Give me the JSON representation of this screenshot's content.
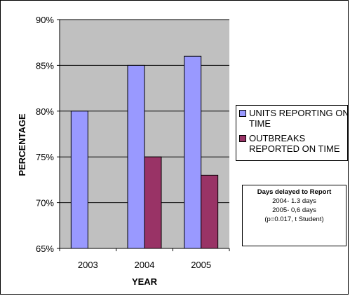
{
  "colors": {
    "plot_background": "#c0c0c0",
    "series_1": "#9999ff",
    "series_2": "#993366",
    "gridline": "#000000"
  },
  "chart_data": {
    "type": "bar",
    "categories": [
      "2003",
      "2004",
      "2005"
    ],
    "series": [
      {
        "name": "UNITS REPORTING ON TIME",
        "values": [
          80,
          85,
          86
        ]
      },
      {
        "name": "OUTBREAKS REPORTED ON TIME",
        "values": [
          null,
          75,
          73
        ]
      }
    ],
    "xlabel": "YEAR",
    "ylabel": "PERCENTAGE",
    "ylim": [
      65,
      90
    ],
    "yticks": [
      65,
      70,
      75,
      80,
      85,
      90
    ],
    "ytick_labels": [
      "65%",
      "70%",
      "75%",
      "80%",
      "85%",
      "90%"
    ],
    "grid": true,
    "legend_position": "right"
  },
  "legend": {
    "items": [
      {
        "label_line1": "UNITS REPORTING ON",
        "label_line2": "TIME"
      },
      {
        "label_line1": "OUTBREAKS",
        "label_line2": "REPORTED ON TIME"
      }
    ]
  },
  "note": {
    "title": "Days delayed to Report",
    "line1": "2004- 1.3 days",
    "line2": "2005- 0,6 days",
    "line3": "(p=0.017, t Student)"
  }
}
